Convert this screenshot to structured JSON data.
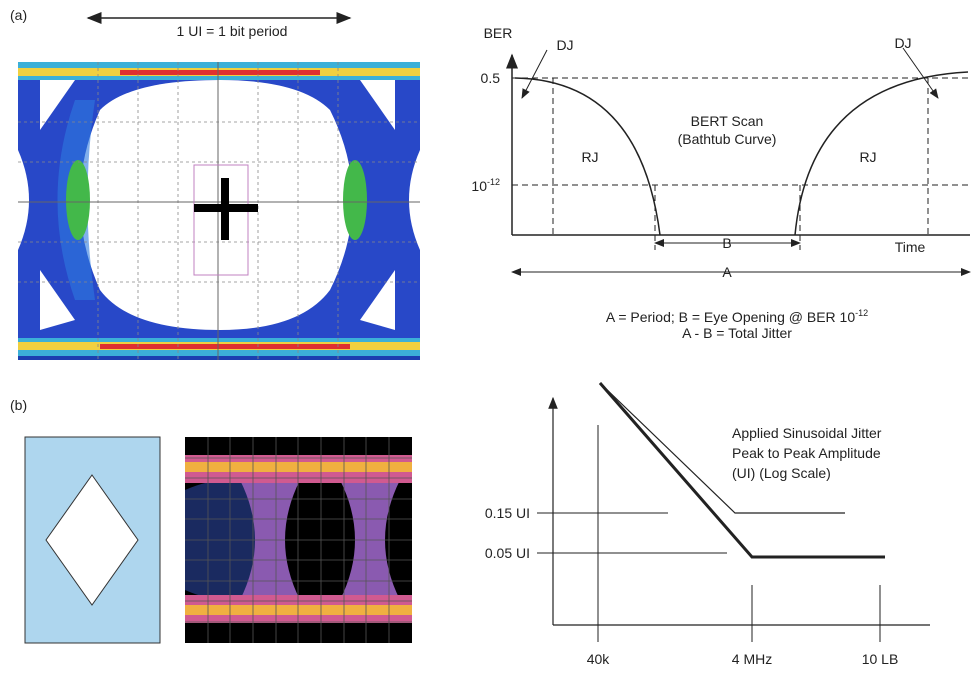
{
  "panel_a": {
    "label": "(a)",
    "ui_caption": "1 UI = 1 bit period"
  },
  "bathtub": {
    "y_axis_label": "BER",
    "dj_left": "DJ",
    "dj_right": "DJ",
    "y_top": "0.5",
    "y_low": {
      "base": "10",
      "exp": "-12"
    },
    "title": "BERT Scan",
    "subtitle": "(Bathtub Curve)",
    "rj_left": "RJ",
    "rj_right": "RJ",
    "b_label": "B",
    "x_axis_label": "Time",
    "a_label": "A",
    "caption_line1": {
      "text": "A = Period; B = Eye Opening @ BER 10",
      "exp": "-12"
    },
    "caption_line2": "A - B = Total Jitter"
  },
  "panel_b": {
    "label": "(b)"
  },
  "jitter_tolerance": {
    "title_lines": [
      "Applied Sinusoidal Jitter",
      "Peak to Peak Amplitude",
      "(UI) (Log Scale)"
    ],
    "y_labels": [
      "0.15 UI",
      "0.05 UI"
    ],
    "x_labels": [
      "40k",
      "4 MHz",
      "10 LB"
    ]
  }
}
